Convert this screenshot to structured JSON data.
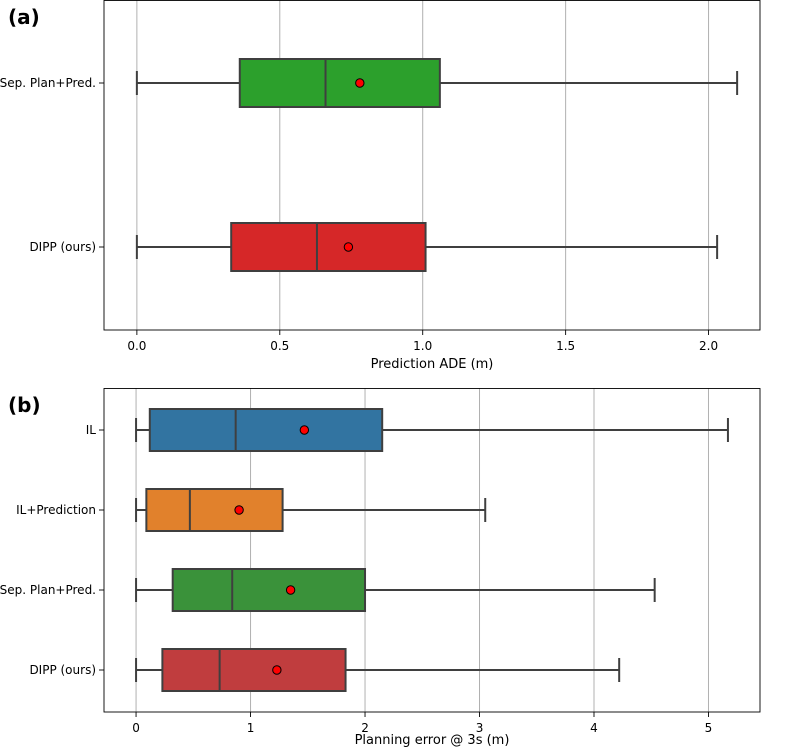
{
  "chart_data": [
    {
      "type": "boxplot",
      "panel_label": "(a)",
      "xlabel": "Prediction ADE (m)",
      "xlim": [
        -0.115,
        2.18
      ],
      "xticks": [
        0.0,
        0.5,
        1.0,
        1.5,
        2.0
      ],
      "xtick_labels": [
        "0.0",
        "0.5",
        "1.0",
        "1.5",
        "2.0"
      ],
      "grid": "vertical",
      "categories": [
        "Sep. Plan+Pred.",
        "DIPP (ours)"
      ],
      "boxes": [
        {
          "name": "Sep. Plan+Pred.",
          "whisker_low": 0.0,
          "q1": 0.36,
          "median": 0.66,
          "q3": 1.06,
          "whisker_high": 2.1,
          "mean": 0.78,
          "color": "#2ca02c"
        },
        {
          "name": "DIPP (ours)",
          "whisker_low": 0.0,
          "q1": 0.33,
          "median": 0.63,
          "q3": 1.01,
          "whisker_high": 2.03,
          "mean": 0.74,
          "color": "#d62728"
        }
      ]
    },
    {
      "type": "boxplot",
      "panel_label": "(b)",
      "xlabel": "Planning error @ 3s (m)",
      "xlim": [
        -0.28,
        5.45
      ],
      "xticks": [
        0,
        1,
        2,
        3,
        4,
        5
      ],
      "xtick_labels": [
        "0",
        "1",
        "2",
        "3",
        "4",
        "5"
      ],
      "grid": "vertical",
      "categories": [
        "IL",
        "IL+Prediction",
        "Sep. Plan+Pred.",
        "DIPP (ours)"
      ],
      "boxes": [
        {
          "name": "IL",
          "whisker_low": 0.0,
          "q1": 0.12,
          "median": 0.87,
          "q3": 2.15,
          "whisker_high": 5.17,
          "mean": 1.47,
          "color": "#3274a1"
        },
        {
          "name": "IL+Prediction",
          "whisker_low": 0.0,
          "q1": 0.09,
          "median": 0.47,
          "q3": 1.28,
          "whisker_high": 3.05,
          "mean": 0.9,
          "color": "#e1812c"
        },
        {
          "name": "Sep. Plan+Pred.",
          "whisker_low": 0.0,
          "q1": 0.32,
          "median": 0.84,
          "q3": 2.0,
          "whisker_high": 4.53,
          "mean": 1.35,
          "color": "#3a923a"
        },
        {
          "name": "DIPP (ours)",
          "whisker_low": 0.0,
          "q1": 0.23,
          "median": 0.73,
          "q3": 1.83,
          "whisker_high": 4.22,
          "mean": 1.23,
          "color": "#c03d3e"
        }
      ]
    }
  ]
}
